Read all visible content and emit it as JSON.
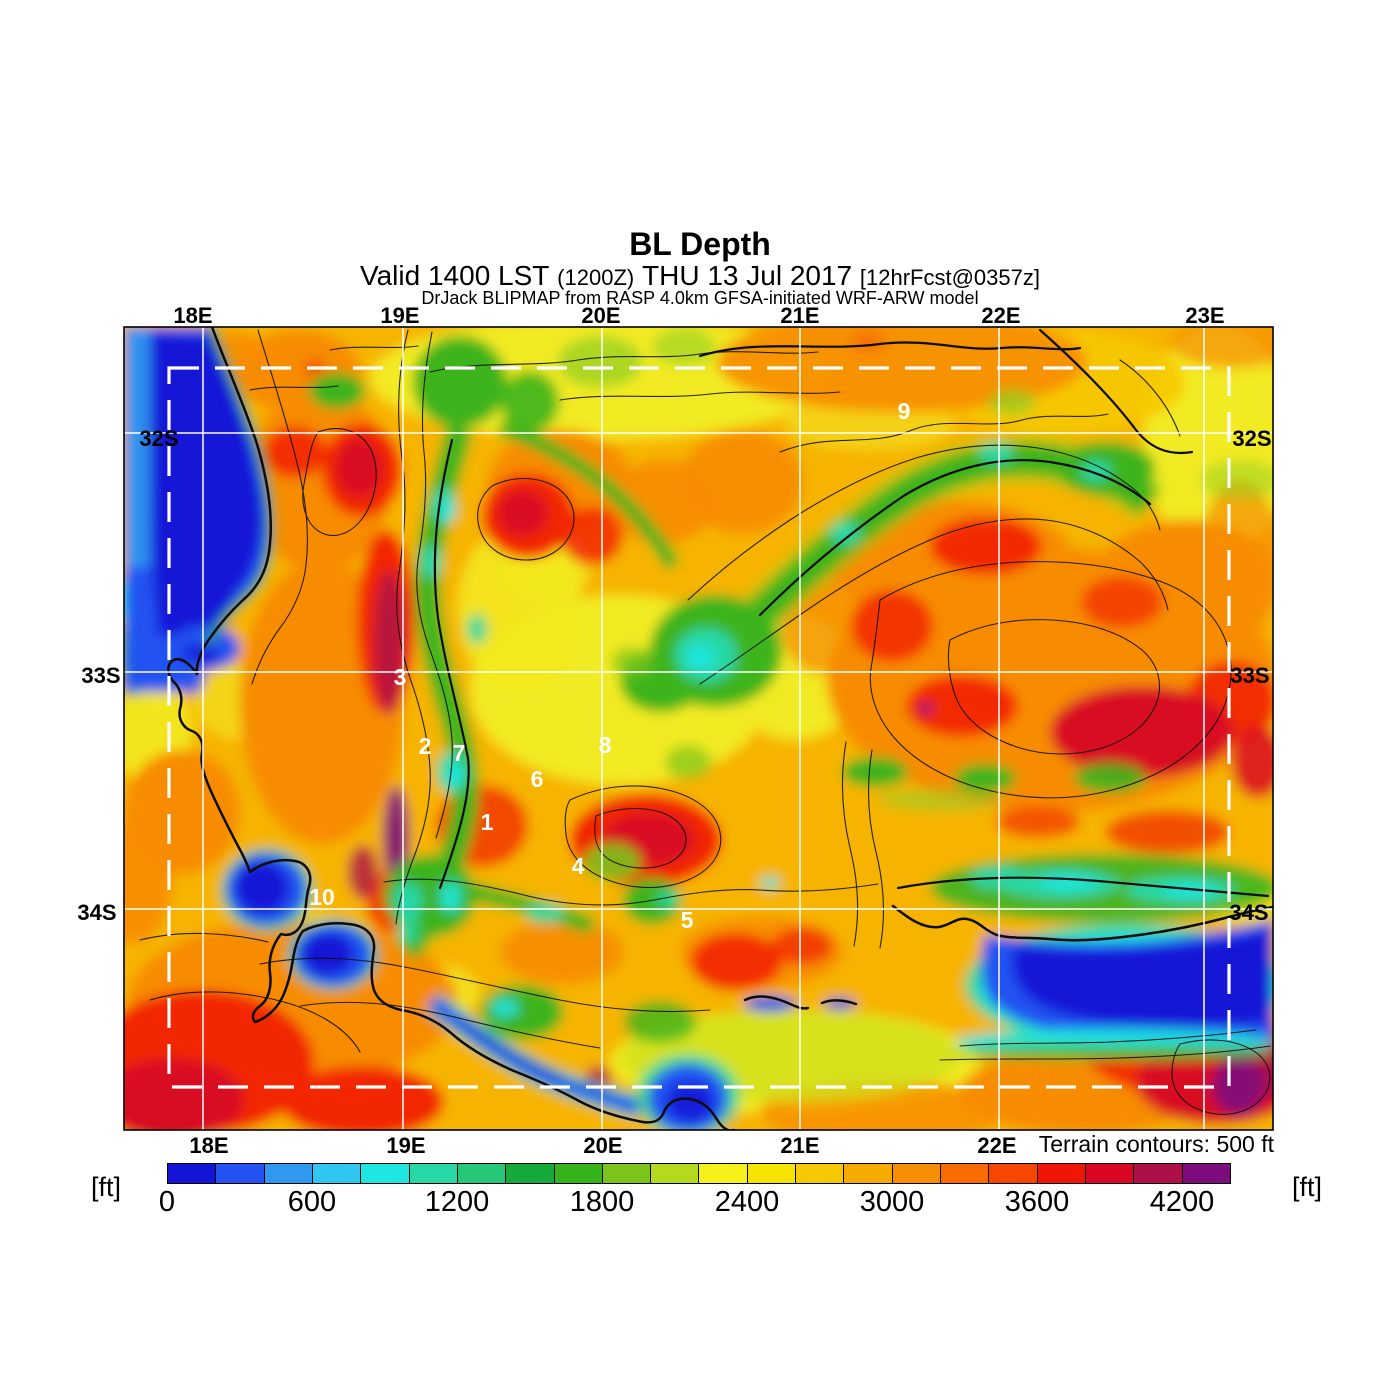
{
  "header": {
    "title": "BL Depth",
    "valid_prefix": "Valid 1400 LST",
    "valid_zulu": "(1200Z)",
    "valid_date": "THU 13 Jul 2017",
    "forecast_tag": "[12hrFcst@0357z]",
    "model_line": "DrJack BLIPMAP from RASP 4.0km GFSA-initiated WRF-ARW model"
  },
  "map": {
    "top_lon_labels": [
      "18E",
      "19E",
      "20E",
      "21E",
      "22E",
      "23E"
    ],
    "bottom_lon_labels": [
      "18E",
      "19E",
      "20E",
      "21E",
      "22E"
    ],
    "left_lat_labels": [
      "32S",
      "33S",
      "34S"
    ],
    "right_lat_labels": [
      "32S",
      "33S",
      "34S"
    ],
    "terrain_note": "Terrain contours: 500 ft",
    "site_labels": [
      "1",
      "2",
      "3",
      "4",
      "5",
      "6",
      "7",
      "8",
      "9",
      "10"
    ]
  },
  "colorbar": {
    "unit_left": "[ft]",
    "unit_right": "[ft]",
    "tick_labels": [
      "0",
      "600",
      "1200",
      "1800",
      "2400",
      "3000",
      "3600",
      "4200"
    ],
    "colors": [
      "#1414d7",
      "#2353f2",
      "#2f99f0",
      "#2fc7ef",
      "#1ee6e0",
      "#25d8a5",
      "#25c878",
      "#16aa3c",
      "#37b41b",
      "#7cc41c",
      "#b5d91d",
      "#f4f018",
      "#f6e300",
      "#f6c900",
      "#f6ab00",
      "#f78d00",
      "#f76b00",
      "#f74600",
      "#f01505",
      "#d90724",
      "#ae0f48",
      "#7d0c7d"
    ]
  },
  "chart_data": {
    "type": "heatmap",
    "title": "BL Depth",
    "subtitle": "Valid 1400 LST (1200Z) THU 13 Jul 2017 [12hrFcst@0357z]",
    "source": "DrJack BLIPMAP from RASP 4.0km GFSA-initiated WRF-ARW model",
    "units": "ft",
    "colorbar": {
      "min": 0,
      "max": 4400,
      "step": 200,
      "tick_values": [
        0,
        600,
        1200,
        1800,
        2400,
        3000,
        3600,
        4200
      ],
      "colors": [
        "#1414d7",
        "#2353f2",
        "#2f99f0",
        "#2fc7ef",
        "#1ee6e0",
        "#25d8a5",
        "#25c878",
        "#16aa3c",
        "#37b41b",
        "#7cc41c",
        "#b5d91d",
        "#f4f018",
        "#f6e300",
        "#f6c900",
        "#f6ab00",
        "#f78d00",
        "#f76b00",
        "#f74600",
        "#f01505",
        "#d90724",
        "#ae0f48",
        "#7d0c7d"
      ]
    },
    "x_axis": {
      "type": "longitude",
      "ticks": [
        "18E",
        "19E",
        "20E",
        "21E",
        "22E",
        "23E"
      ]
    },
    "y_axis": {
      "type": "latitude",
      "ticks": [
        "32S",
        "33S",
        "34S"
      ]
    },
    "grid": {
      "graticule_deg": 1,
      "style": "solid white lines"
    },
    "domain_boundary": "white dashed rectangle (model nest boundary)",
    "terrain_contours_interval_ft": 500,
    "geo_extent": {
      "lon_e": [
        17.6,
        23.4
      ],
      "lat_s": [
        31.6,
        34.9
      ]
    },
    "site_markers": [
      {
        "label": "1",
        "lon_e": 19.4,
        "lat_s": 33.6
      },
      {
        "label": "2",
        "lon_e": 19.1,
        "lat_s": 33.3
      },
      {
        "label": "3",
        "lon_e": 19.0,
        "lat_s": 33.0
      },
      {
        "label": "4",
        "lon_e": 19.9,
        "lat_s": 33.8
      },
      {
        "label": "5",
        "lon_e": 20.4,
        "lat_s": 34.0
      },
      {
        "label": "6",
        "lon_e": 19.7,
        "lat_s": 33.5
      },
      {
        "label": "7",
        "lon_e": 19.3,
        "lat_s": 33.3
      },
      {
        "label": "8",
        "lon_e": 20.0,
        "lat_s": 33.3
      },
      {
        "label": "9",
        "lon_e": 21.5,
        "lat_s": 31.9
      },
      {
        "label": "10",
        "lon_e": 18.6,
        "lat_s": 34.0
      }
    ],
    "field_summary": [
      {
        "region": "Atlantic ocean strip along the west coast (top-left, dark blue)",
        "bl_depth_ft": "0-600"
      },
      {
        "region": "Large south-coast bay (bottom-right), False Bay and Table Bay (blue)",
        "bl_depth_ft": "0-400"
      },
      {
        "region": "Mountain chains: N-S Cederberg band near 19.2E, escarpment arc 20-22.5E near 32.3S, coastal ranges along the south coast (green/teal)",
        "bl_depth_ft": "1000-1800"
      },
      {
        "region": "Interior plains over most of the domain (yellow-orange)",
        "bl_depth_ft": "2200-3200"
      },
      {
        "region": "Deep cores: western interior belt ~18.9E 32.3-33.6S (maroon/purple streaks), eastern interior ~21-22.5E 33.1-33.5S, bottom-left and bottom-right corners",
        "bl_depth_ft": "3400-4400"
      }
    ]
  }
}
